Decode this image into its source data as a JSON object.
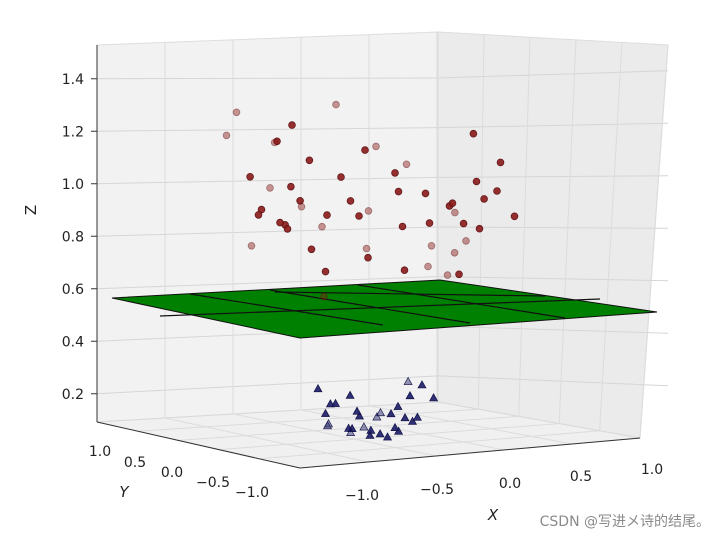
{
  "chart_data": {
    "type": "scatter",
    "projection": "3d",
    "zlabel": "Z",
    "xlabel": "X",
    "ylabel": "Y",
    "z_ticks": [
      "0.2",
      "0.4",
      "0.6",
      "0.8",
      "1.0",
      "1.2",
      "1.4"
    ],
    "x_ticks": [
      "−1.0",
      "−0.5",
      "0.0",
      "0.5",
      "1.0"
    ],
    "y_ticks": [
      "1.0",
      "0.5",
      "0.0",
      "−0.5",
      "−1.0"
    ],
    "zlim": [
      0.05,
      1.45
    ],
    "grid": true,
    "plane": {
      "z": 0.5,
      "color": "#008000"
    },
    "series": [
      {
        "marker": "circle",
        "color": "#8b1a1a",
        "points": [
          [
            -0.9,
            0.3,
            1.3
          ],
          [
            -0.85,
            0.6,
            1.22
          ],
          [
            -0.8,
            -0.2,
            1.18
          ],
          [
            -0.88,
            0.1,
            1.05
          ],
          [
            -0.82,
            -0.5,
            1.0
          ],
          [
            -0.75,
            0.2,
            0.93
          ],
          [
            -0.78,
            -0.3,
            0.86
          ],
          [
            -0.7,
            0.5,
            0.8
          ],
          [
            -0.65,
            0.1,
            0.88
          ],
          [
            -0.72,
            -0.6,
            1.1
          ],
          [
            -0.6,
            0.4,
            1.02
          ],
          [
            -0.58,
            -0.1,
            0.96
          ],
          [
            -0.55,
            0.2,
            0.86
          ],
          [
            -0.5,
            -0.4,
            0.9
          ],
          [
            -0.48,
            0.6,
            1.2
          ],
          [
            -0.45,
            0.0,
            0.78
          ],
          [
            -0.4,
            0.3,
            0.95
          ],
          [
            -0.35,
            -0.3,
            1.05
          ],
          [
            -0.3,
            0.1,
            0.7
          ],
          [
            -0.25,
            -0.5,
            1.15
          ],
          [
            -0.2,
            0.4,
            0.88
          ],
          [
            -0.15,
            0.0,
            0.97
          ],
          [
            -0.1,
            -0.2,
            0.75
          ],
          [
            -0.05,
            0.5,
            1.35
          ],
          [
            0.0,
            0.2,
            0.92
          ],
          [
            0.05,
            -0.4,
            1.0
          ],
          [
            0.1,
            0.3,
            0.8
          ],
          [
            0.15,
            -0.1,
            1.08
          ],
          [
            0.2,
            0.5,
            0.95
          ],
          [
            0.25,
            0.0,
            0.88
          ],
          [
            0.3,
            -0.3,
            1.0
          ],
          [
            0.35,
            0.2,
            0.72
          ],
          [
            0.4,
            -0.5,
            0.95
          ],
          [
            0.45,
            0.4,
            1.13
          ],
          [
            0.5,
            0.1,
            0.9
          ],
          [
            0.55,
            -0.2,
            0.97
          ],
          [
            0.6,
            0.3,
            0.82
          ],
          [
            0.65,
            -0.4,
            1.05
          ],
          [
            0.7,
            0.6,
            0.75
          ],
          [
            0.72,
            0.0,
            0.9
          ],
          [
            0.75,
            -0.6,
            1.12
          ],
          [
            0.78,
            0.3,
            0.95
          ],
          [
            0.8,
            -0.1,
            0.88
          ],
          [
            0.82,
            0.4,
            0.8
          ],
          [
            0.85,
            -0.3,
            1.02
          ],
          [
            0.88,
            0.2,
            1.25
          ],
          [
            0.9,
            -0.5,
            0.92
          ],
          [
            0.92,
            0.1,
            1.0
          ],
          [
            0.95,
            0.5,
            0.85
          ],
          [
            0.6,
            -0.2,
            0.7
          ],
          [
            -0.9,
            -0.1,
            0.9
          ],
          [
            -0.1,
            0.6,
            0.62
          ],
          [
            0.85,
            0.6,
            0.72
          ],
          [
            -0.6,
            0.0,
            1.25
          ],
          [
            0.3,
            0.6,
            1.2
          ]
        ]
      },
      {
        "marker": "triangle",
        "color": "#1a1a66",
        "points": [
          [
            -0.35,
            -0.2,
            0.19
          ],
          [
            -0.3,
            0.1,
            0.16
          ],
          [
            -0.25,
            -0.4,
            0.14
          ],
          [
            -0.2,
            0.3,
            0.12
          ],
          [
            -0.18,
            -0.1,
            0.1
          ],
          [
            -0.15,
            0.4,
            0.13
          ],
          [
            -0.12,
            -0.3,
            0.09
          ],
          [
            -0.08,
            0.2,
            0.11
          ],
          [
            -0.05,
            -0.5,
            0.15
          ],
          [
            0.0,
            0.0,
            0.08
          ],
          [
            0.02,
            0.4,
            0.1
          ],
          [
            0.05,
            -0.2,
            0.07
          ],
          [
            0.08,
            0.3,
            0.12
          ],
          [
            0.1,
            -0.4,
            0.14
          ],
          [
            0.12,
            0.1,
            0.09
          ],
          [
            0.15,
            -0.1,
            0.11
          ],
          [
            0.18,
            0.3,
            0.16
          ],
          [
            0.2,
            -0.3,
            0.13
          ],
          [
            0.22,
            0.0,
            0.1
          ],
          [
            0.25,
            0.4,
            0.18
          ],
          [
            0.28,
            -0.2,
            0.15
          ],
          [
            0.3,
            0.2,
            0.2
          ],
          [
            0.32,
            -0.4,
            0.22
          ],
          [
            0.35,
            0.1,
            0.24
          ],
          [
            -0.28,
            -0.3,
            0.22
          ],
          [
            -0.22,
            0.2,
            0.2
          ],
          [
            -0.1,
            0.0,
            0.17
          ],
          [
            0.4,
            0.0,
            0.28
          ],
          [
            0.42,
            0.3,
            0.3
          ],
          [
            -0.4,
            0.0,
            0.25
          ]
        ]
      }
    ]
  },
  "watermark": "CSDN @写进メ诗的结尾。"
}
